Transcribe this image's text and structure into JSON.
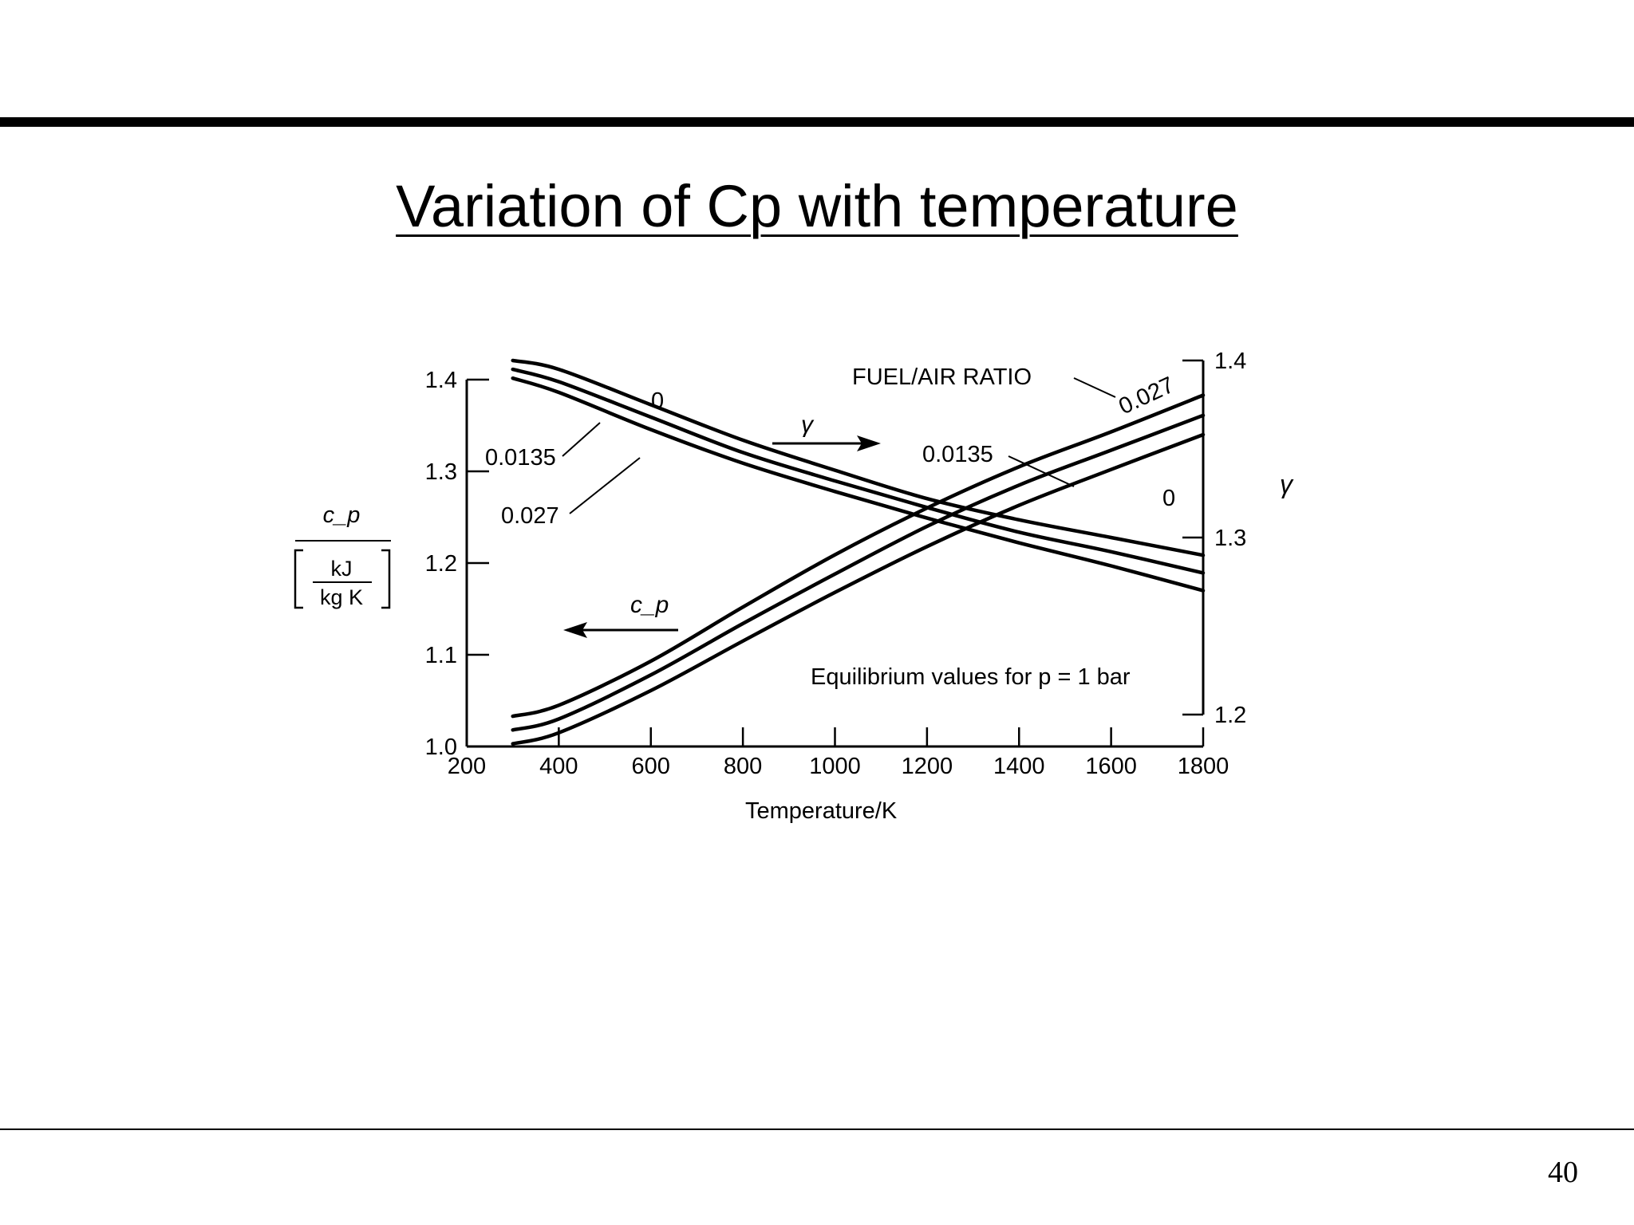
{
  "slide": {
    "title": "Variation of Cp with temperature",
    "page_number": "40"
  },
  "chart_data": {
    "type": "line",
    "xlabel": "Temperature/K",
    "x_ticks": [
      200,
      400,
      600,
      800,
      1000,
      1200,
      1400,
      1600,
      1800
    ],
    "xlim": [
      200,
      1800
    ],
    "left_axis": {
      "label": "c_p",
      "unit_numerator": "kJ",
      "unit_denominator": "kg K",
      "ticks": [
        "1.0",
        "1.1",
        "1.2",
        "1.3",
        "1.4"
      ],
      "ylim": [
        1.0,
        1.4
      ]
    },
    "right_axis": {
      "label": "γ",
      "ticks": [
        "1.2",
        "1.3",
        "1.4"
      ],
      "ylim": [
        1.2,
        1.4
      ]
    },
    "legend_title": "FUEL/AIR RATIO",
    "annotation": "Equilibrium values for p = 1 bar",
    "cp_arrow_label": "c_p",
    "gamma_arrow_label": "γ",
    "x": [
      300,
      400,
      600,
      800,
      1000,
      1200,
      1400,
      1600,
      1800
    ],
    "series": [
      {
        "group": "gamma",
        "axis": "right",
        "label": "0",
        "values": [
          1.4,
          1.395,
          1.375,
          1.355,
          1.338,
          1.322,
          1.31,
          1.3,
          1.29
        ]
      },
      {
        "group": "gamma",
        "axis": "right",
        "label": "0.0135",
        "values": [
          1.395,
          1.388,
          1.368,
          1.348,
          1.332,
          1.317,
          1.303,
          1.292,
          1.28
        ]
      },
      {
        "group": "gamma",
        "axis": "right",
        "label": "0.027",
        "values": [
          1.39,
          1.382,
          1.361,
          1.342,
          1.326,
          1.311,
          1.297,
          1.284,
          1.27
        ]
      },
      {
        "group": "cp",
        "axis": "left",
        "label": "0.027",
        "values": [
          1.033,
          1.045,
          1.093,
          1.152,
          1.209,
          1.26,
          1.305,
          1.343,
          1.383
        ]
      },
      {
        "group": "cp",
        "axis": "left",
        "label": "0.0135",
        "values": [
          1.018,
          1.03,
          1.078,
          1.134,
          1.188,
          1.24,
          1.285,
          1.323,
          1.361
        ]
      },
      {
        "group": "cp",
        "axis": "left",
        "label": "0",
        "values": [
          1.003,
          1.015,
          1.061,
          1.115,
          1.168,
          1.218,
          1.263,
          1.302,
          1.34
        ]
      }
    ],
    "curve_labels": {
      "gamma_0": "0",
      "gamma_mid": "0.0135",
      "gamma_high": "0.027",
      "cp_high": "0.027",
      "cp_mid": "0.0135",
      "cp_low": "0"
    }
  }
}
